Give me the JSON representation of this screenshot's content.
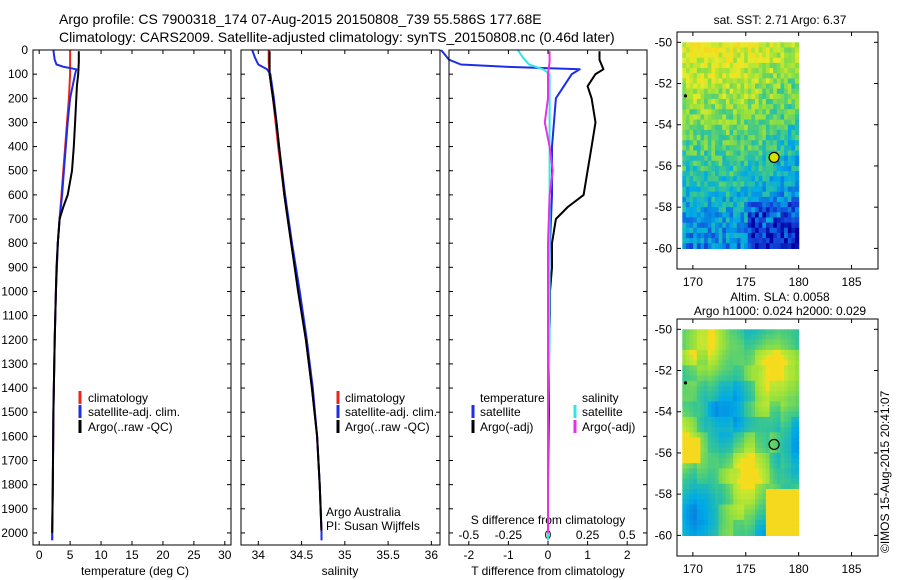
{
  "header": {
    "line1": "Argo profile: CS 7900318_174 07-Aug-2015 20150808_739 55.586S 177.68E",
    "line2": "Climatology: CARS2009. Satellite-adjusted climatology: synTS_20150808.nc (0.46d later)"
  },
  "credit": "©IMOS 15-Aug-2015 20:41:07",
  "colors": {
    "climatology": "#e8261d",
    "satellite": "#1d2de8",
    "argo": "#000000",
    "salinity_satellite": "#32e6e6",
    "salinity_argo": "#e632e6"
  },
  "depth_ticks": [
    "0",
    "100",
    "200",
    "300",
    "400",
    "500",
    "600",
    "700",
    "800",
    "900",
    "1000",
    "1100",
    "1200",
    "1300",
    "1400",
    "1500",
    "1600",
    "1700",
    "1800",
    "1900",
    "2000"
  ],
  "panels": {
    "temperature": {
      "xticks": [
        "0",
        "5",
        "10",
        "15",
        "20",
        "25",
        "30"
      ],
      "xlabel": "temperature (deg C)",
      "legend": [
        "climatology",
        "satellite-adj. clim.",
        "Argo(..raw -QC)"
      ]
    },
    "salinity": {
      "xticks": [
        "34",
        "34.5",
        "35",
        "35.5",
        "36"
      ],
      "xlabel": "salinity",
      "legend": [
        "climatology",
        "satellite-adj. clim.",
        "Argo(..raw -QC)"
      ],
      "note1": "Argo Australia",
      "note2": "PI: Susan Wijffels"
    },
    "difference": {
      "xticks_T": [
        "-2",
        "-1",
        "0",
        "1",
        "2"
      ],
      "xticks_S": [
        "-0.5",
        "-0.25",
        "0",
        "0.25",
        "0.5"
      ],
      "xlabel_T": "T difference from climatology",
      "xlabel_S": "S difference from climatology",
      "legend_T_title": "temperature",
      "legend_S_title": "salinity",
      "legend_T": [
        "satellite",
        "Argo(-adj)"
      ],
      "legend_S": [
        "satellite",
        "Argo(-adj)"
      ]
    },
    "sst_map": {
      "title": "sat. SST: 2.71  Argo: 6.37",
      "yticks": [
        "-50",
        "-52",
        "-54",
        "-56",
        "-58",
        "-60"
      ],
      "xticks": [
        "170",
        "175",
        "180",
        "185"
      ]
    },
    "sla_map": {
      "title1": "Altim. SLA: 0.0058",
      "title2": "Argo h1000: 0.024 h2000: 0.029",
      "yticks": [
        "-50",
        "-52",
        "-54",
        "-56",
        "-58",
        "-60"
      ],
      "xticks": [
        "170",
        "175",
        "180",
        "185"
      ]
    }
  },
  "chart_data": [
    {
      "type": "line",
      "title": "",
      "xlabel": "temperature (deg C)",
      "ylabel": "",
      "xlim": [
        -1,
        31
      ],
      "ylim": [
        2050,
        0
      ],
      "y_reversed": true,
      "series": [
        {
          "name": "climatology",
          "color": "#e8261d",
          "depth": [
            0,
            50,
            100,
            200,
            300,
            400,
            500,
            600,
            700,
            800,
            1000,
            1200,
            1500,
            1800,
            2000,
            2030
          ],
          "values": [
            5.0,
            5.0,
            5.0,
            4.8,
            4.5,
            4.2,
            3.9,
            3.6,
            3.3,
            3.0,
            2.7,
            2.5,
            2.3,
            2.2,
            2.1,
            2.1
          ]
        },
        {
          "name": "satellite-adj. clim.",
          "color": "#1d2de8",
          "depth": [
            0,
            20,
            40,
            60,
            70,
            80,
            100,
            200,
            300,
            400,
            500,
            600,
            700,
            800,
            1000,
            1200,
            1500,
            1800,
            2000,
            2030
          ],
          "values": [
            2.3,
            2.4,
            2.5,
            2.8,
            4.0,
            6.0,
            5.8,
            5.0,
            4.6,
            4.3,
            4.0,
            3.7,
            3.3,
            3.0,
            2.7,
            2.5,
            2.3,
            2.2,
            2.1,
            2.1
          ]
        },
        {
          "name": "Argo(..raw -QC)",
          "color": "#000000",
          "depth": [
            5,
            50,
            100,
            150,
            200,
            300,
            400,
            500,
            600,
            650,
            700,
            800,
            900,
            1000,
            1200,
            1500,
            1800,
            2000
          ],
          "values": [
            6.4,
            6.4,
            6.3,
            6.1,
            6.0,
            5.8,
            5.6,
            5.3,
            4.6,
            3.9,
            3.3,
            3.0,
            2.8,
            2.7,
            2.5,
            2.3,
            2.2,
            2.1
          ]
        }
      ]
    },
    {
      "type": "line",
      "title": "",
      "xlabel": "salinity",
      "ylabel": "",
      "xlim": [
        33.8,
        36.1
      ],
      "ylim": [
        2050,
        0
      ],
      "y_reversed": true,
      "series": [
        {
          "name": "climatology",
          "color": "#e8261d",
          "depth": [
            0,
            50,
            100,
            150,
            200,
            400,
            600,
            800,
            1000,
            1200,
            1400,
            1600,
            1800,
            2000,
            2030
          ],
          "values": [
            34.12,
            34.12,
            34.13,
            34.15,
            34.17,
            34.23,
            34.3,
            34.38,
            34.47,
            34.55,
            34.62,
            34.68,
            34.71,
            34.73,
            34.73
          ]
        },
        {
          "name": "satellite-adj. clim.",
          "color": "#1d2de8",
          "depth": [
            0,
            30,
            60,
            80,
            100,
            150,
            200,
            400,
            600,
            800,
            1000,
            1200,
            1400,
            1600,
            1800,
            2000,
            2030
          ],
          "values": [
            33.93,
            33.96,
            34.0,
            34.1,
            34.14,
            34.16,
            34.18,
            34.24,
            34.31,
            34.39,
            34.48,
            34.56,
            34.63,
            34.68,
            34.71,
            34.73,
            34.73
          ]
        },
        {
          "name": "Argo(..raw -QC)",
          "color": "#000000",
          "depth": [
            5,
            50,
            100,
            200,
            300,
            400,
            500,
            600,
            700,
            800,
            1000,
            1200,
            1400,
            1600,
            1800,
            1990
          ],
          "values": [
            34.13,
            34.13,
            34.13,
            34.17,
            34.21,
            34.24,
            34.27,
            34.3,
            34.34,
            34.38,
            34.46,
            34.55,
            34.62,
            34.68,
            34.71,
            34.73
          ]
        }
      ]
    },
    {
      "type": "line",
      "title": "",
      "xlabel": "T difference from climatology",
      "x2label": "S difference from climatology",
      "ylabel": "",
      "xlim": [
        -2.5,
        2.5
      ],
      "x2lim": [
        -0.625,
        0.625
      ],
      "ylim": [
        2050,
        0
      ],
      "y_reversed": true,
      "series": [
        {
          "name": "satellite",
          "variable": "temperature",
          "color": "#1d2de8",
          "depth": [
            0,
            20,
            40,
            60,
            70,
            80,
            100,
            200,
            400,
            600,
            800,
            1000,
            1200,
            1500,
            1800,
            2030
          ],
          "values": [
            -2.7,
            -2.6,
            -2.5,
            -2.2,
            -1.0,
            0.8,
            0.6,
            0.2,
            0.1,
            0.1,
            0.05,
            0.03,
            0.02,
            0.0,
            0.0,
            0.0
          ]
        },
        {
          "name": "Argo(-adj)",
          "variable": "temperature",
          "color": "#000000",
          "depth": [
            5,
            40,
            80,
            100,
            150,
            200,
            300,
            400,
            500,
            600,
            650,
            700,
            800,
            900,
            1000,
            1100,
            1200,
            1500,
            1800,
            2000
          ],
          "values": [
            1.3,
            1.3,
            1.4,
            1.2,
            1.0,
            1.1,
            1.2,
            1.1,
            1.0,
            0.9,
            0.5,
            0.2,
            0.1,
            0.1,
            0.05,
            0.05,
            0.03,
            0.02,
            0.0,
            0.0
          ]
        },
        {
          "name": "satellite",
          "variable": "salinity",
          "color": "#32e6e6",
          "depth": [
            0,
            30,
            60,
            80,
            100,
            200,
            400,
            600,
            800,
            1000,
            1200,
            1500,
            1800,
            2030
          ],
          "values": [
            -0.19,
            -0.16,
            -0.12,
            -0.03,
            0.01,
            0.01,
            0.01,
            0.01,
            0.01,
            0.01,
            0.01,
            0.0,
            0.0,
            0.0
          ]
        },
        {
          "name": "Argo(-adj)",
          "variable": "salinity",
          "color": "#e632e6",
          "depth": [
            5,
            50,
            100,
            200,
            300,
            400,
            500,
            600,
            800,
            1000,
            1200,
            1500,
            1800,
            2000
          ],
          "values": [
            0.01,
            0.01,
            0.0,
            0.0,
            -0.02,
            0.01,
            0.03,
            0.01,
            0.0,
            0.0,
            0.0,
            0.0,
            0.0,
            0.0
          ]
        }
      ]
    },
    {
      "type": "heatmap",
      "title": "sat. SST: 2.71  Argo: 6.37",
      "xlim": [
        168.5,
        187.5
      ],
      "ylim": [
        -61,
        -49.5
      ],
      "data_extent_lon": [
        169,
        180
      ],
      "data_extent_lat": [
        -60,
        -50
      ],
      "argo_position": {
        "lon": 177.68,
        "lat": -55.586
      }
    },
    {
      "type": "heatmap",
      "title": "Altim. SLA: 0.0058",
      "subtitle": "Argo h1000: 0.024 h2000: 0.029",
      "xlim": [
        168.5,
        187.5
      ],
      "ylim": [
        -61,
        -49.5
      ],
      "data_extent_lon": [
        169,
        180
      ],
      "data_extent_lat": [
        -60,
        -50
      ],
      "argo_position": {
        "lon": 177.68,
        "lat": -55.586
      }
    }
  ]
}
